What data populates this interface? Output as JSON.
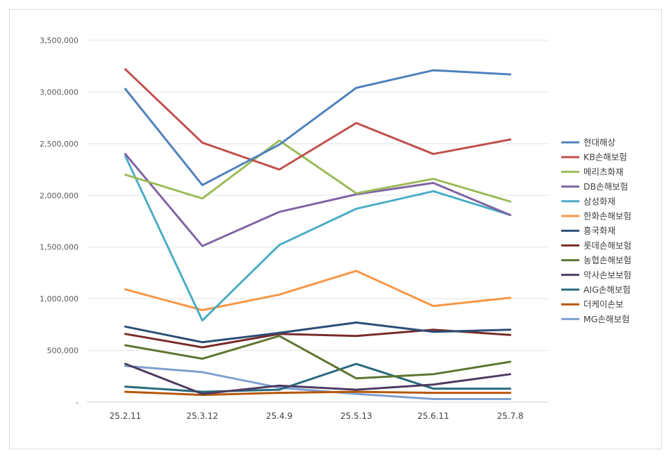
{
  "chart_data": {
    "type": "line",
    "title": "",
    "xlabel": "",
    "ylabel": "",
    "ylim": [
      0,
      3500000
    ],
    "y_ticks": [
      {
        "value": 0,
        "label": "-"
      },
      {
        "value": 500000,
        "label": "500,000"
      },
      {
        "value": 1000000,
        "label": "1,000,000"
      },
      {
        "value": 1500000,
        "label": "1,500,000"
      },
      {
        "value": 2000000,
        "label": "2,000,000"
      },
      {
        "value": 2500000,
        "label": "2,500,000"
      },
      {
        "value": 3000000,
        "label": "3,000,000"
      },
      {
        "value": 3500000,
        "label": "3,500,000"
      }
    ],
    "grid": true,
    "legend_position": "right",
    "categories": [
      "25.2.11",
      "25.3.12",
      "25.4.9",
      "25.5.13",
      "25.6.11",
      "25.7.8"
    ],
    "series": [
      {
        "name": "현대해상",
        "color": "#4f81bd",
        "values": [
          3030000,
          2100000,
          2490000,
          3040000,
          3210000,
          3170000
        ]
      },
      {
        "name": "KB손해보험",
        "color": "#c0504d",
        "values": [
          3220000,
          2510000,
          2250000,
          2700000,
          2400000,
          2540000
        ]
      },
      {
        "name": "메리츠화재",
        "color": "#9bbb59",
        "values": [
          2200000,
          1970000,
          2530000,
          2020000,
          2160000,
          1940000
        ]
      },
      {
        "name": "DB손해보험",
        "color": "#8064a2",
        "values": [
          2400000,
          1510000,
          1840000,
          2010000,
          2120000,
          1810000
        ]
      },
      {
        "name": "삼성화재",
        "color": "#4bacc6",
        "values": [
          2380000,
          790000,
          1520000,
          1870000,
          2040000,
          1810000
        ]
      },
      {
        "name": "한화손해보험",
        "color": "#f79646",
        "values": [
          1090000,
          890000,
          1040000,
          1270000,
          930000,
          1010000
        ]
      },
      {
        "name": "흥국화재",
        "color": "#2c4d75",
        "values": [
          730000,
          580000,
          670000,
          770000,
          680000,
          700000
        ]
      },
      {
        "name": "롯데손해보험",
        "color": "#772c2a",
        "values": [
          660000,
          530000,
          660000,
          640000,
          700000,
          650000
        ]
      },
      {
        "name": "농협손해보험",
        "color": "#5f7530",
        "values": [
          550000,
          420000,
          640000,
          230000,
          270000,
          390000
        ]
      },
      {
        "name": "악사손보보험",
        "color": "#4d3b62",
        "values": [
          370000,
          80000,
          160000,
          120000,
          170000,
          270000
        ]
      },
      {
        "name": "AIG손해보험",
        "color": "#276a7c",
        "values": [
          150000,
          100000,
          120000,
          370000,
          130000,
          130000
        ]
      },
      {
        "name": "더케이손보",
        "color": "#b65708",
        "values": [
          100000,
          70000,
          90000,
          100000,
          90000,
          90000
        ]
      },
      {
        "name": "MG손해보험",
        "color": "#7f9fcf",
        "values": [
          350000,
          290000,
          140000,
          80000,
          30000,
          30000
        ]
      }
    ]
  }
}
